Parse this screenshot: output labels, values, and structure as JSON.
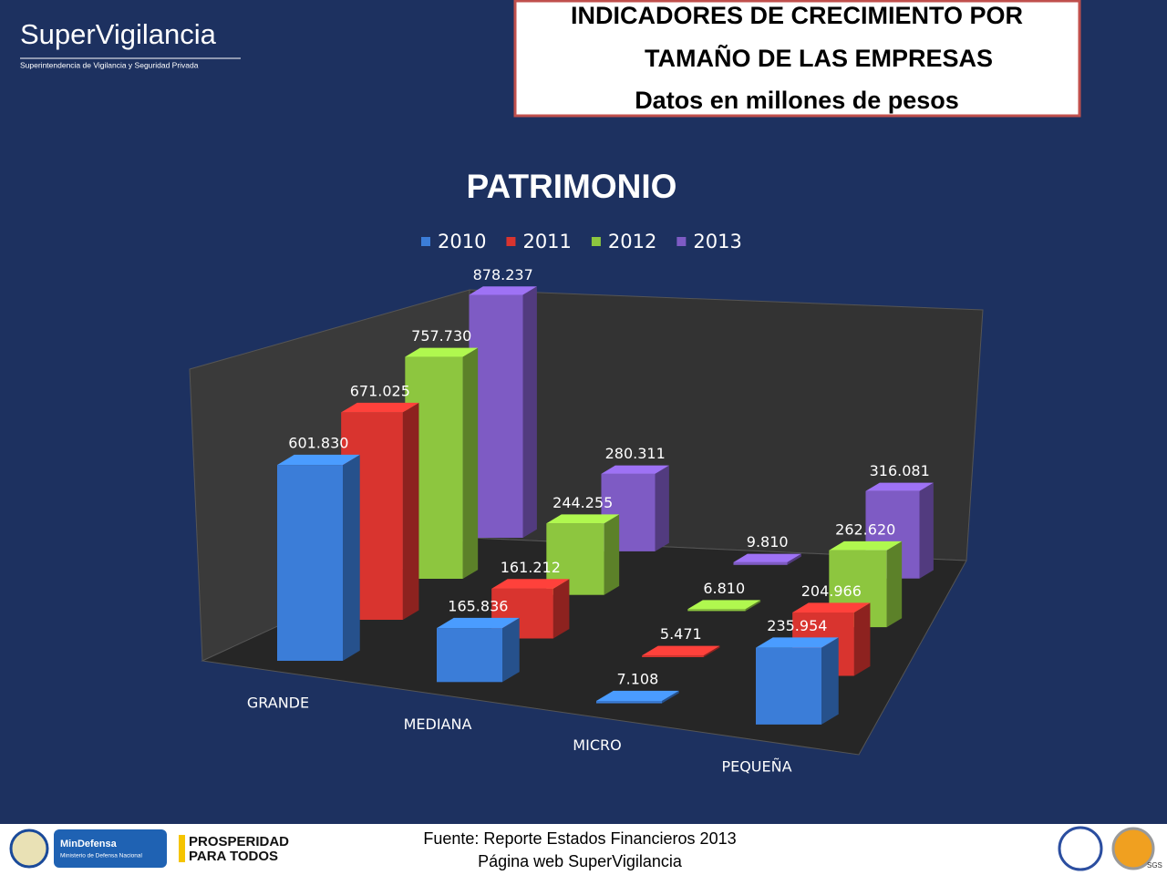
{
  "header": {
    "brand": "SuperVigilancia",
    "brand_subtitle": "Superintendencia de Vigilancia y Seguridad Privada",
    "box_lines": [
      "INDICADORES DE CRECIMIENTO POR",
      "TAMAÑO DE LAS EMPRESAS",
      "Datos en millones de pesos"
    ]
  },
  "chart_data": {
    "type": "bar3d",
    "title": "PATRIMONIO",
    "categories": [
      "GRANDE",
      "MEDIANA",
      "MICRO",
      "PEQUEÑA"
    ],
    "series": [
      {
        "name": "2010",
        "color": "#3b7dd8",
        "values": [
          601830,
          165836,
          7108,
          235954
        ],
        "value_labels": [
          "601.830",
          "165.836",
          "7.108",
          "235.954"
        ]
      },
      {
        "name": "2011",
        "color": "#d9342f",
        "values": [
          671025,
          161212,
          5471,
          204966
        ],
        "value_labels": [
          "671.025",
          "161.212",
          "5.471",
          "204.966"
        ]
      },
      {
        "name": "2012",
        "color": "#8dc63f",
        "values": [
          757730,
          244255,
          6810,
          262620
        ],
        "value_labels": [
          "757.730",
          "244.255",
          "6.810",
          "262.620"
        ]
      },
      {
        "name": "2013",
        "color": "#7e5bc4",
        "values": [
          878237,
          280311,
          9810,
          316081
        ],
        "value_labels": [
          "878.237",
          "280.311",
          "9.810",
          "316.081"
        ]
      }
    ],
    "legend": "top"
  },
  "footer": {
    "source_lines": [
      "Fuente: Reporte Estados Financieros 2013",
      "Página web SuperVigilancia"
    ],
    "logos": [
      "MinDefensa",
      "Ministerio de Defensa Nacional",
      "PROSPERIDAD",
      "PARA TODOS",
      "SGS"
    ]
  }
}
